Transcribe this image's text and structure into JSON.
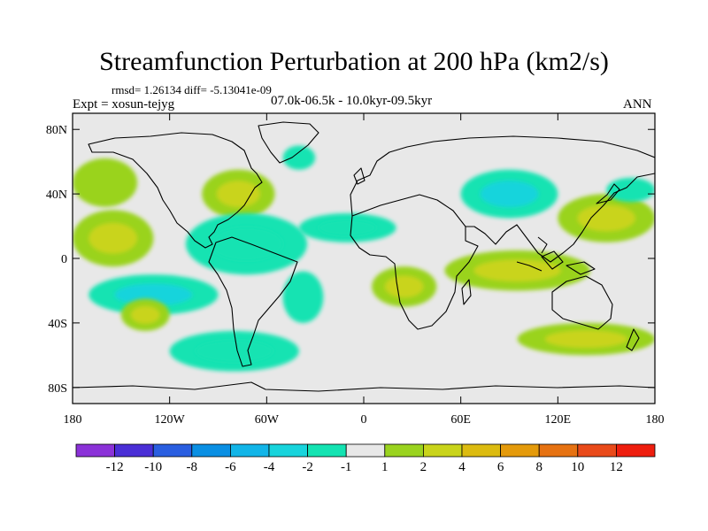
{
  "title": "Streamfunction Perturbation at 200 hPa (km2/s)",
  "stats": "rmsd= 1.26134 diff= -5.13041e-09",
  "experiment": "Expt = xosun-tejyg",
  "period": "07.0k-06.5k - 10.0kyr-09.5kyr",
  "season": "ANN",
  "map": {
    "projection": "cylindrical-equidistant",
    "lon_range": [
      -180,
      180
    ],
    "lat_range": [
      -90,
      90
    ],
    "x_ticks": [
      {
        "lon": -180,
        "label": "180"
      },
      {
        "lon": -120,
        "label": "120W"
      },
      {
        "lon": -60,
        "label": "60W"
      },
      {
        "lon": 0,
        "label": "0"
      },
      {
        "lon": 60,
        "label": "60E"
      },
      {
        "lon": 120,
        "label": "120E"
      },
      {
        "lon": 180,
        "label": "180"
      }
    ],
    "y_ticks": [
      {
        "lat": 80,
        "label": "80N"
      },
      {
        "lat": 40,
        "label": "40N"
      },
      {
        "lat": 0,
        "label": "0"
      },
      {
        "lat": -40,
        "label": "40S"
      },
      {
        "lat": -80,
        "label": "80S"
      }
    ],
    "background_color": "#e8e8e8",
    "features": [
      {
        "name": "north-pacific-positive",
        "lon": [
          -180,
          -140
        ],
        "lat": [
          32,
          62
        ],
        "value": 1.5
      },
      {
        "name": "tropical-pacific-positive",
        "lon": [
          -180,
          -130
        ],
        "lat": [
          -5,
          30
        ],
        "value": 3.5
      },
      {
        "name": "north-atlantic-positive",
        "lon": [
          -100,
          -55
        ],
        "lat": [
          25,
          55
        ],
        "value": 2
      },
      {
        "name": "greenland-negative",
        "lon": [
          -50,
          -30
        ],
        "lat": [
          55,
          70
        ],
        "value": -1.5
      },
      {
        "name": "central-america-negative",
        "lon": [
          -110,
          -35
        ],
        "lat": [
          -10,
          28
        ],
        "value": -2
      },
      {
        "name": "tropical-atlantic-negative",
        "lon": [
          -40,
          20
        ],
        "lat": [
          10,
          28
        ],
        "value": -2
      },
      {
        "name": "south-pacific-negative",
        "lon": [
          -170,
          -90
        ],
        "lat": [
          -35,
          -10
        ],
        "value": -2.5
      },
      {
        "name": "south-america-negative",
        "lon": [
          -50,
          -25
        ],
        "lat": [
          -40,
          -8
        ],
        "value": -1
      },
      {
        "name": "south-pacific-positive",
        "lon": [
          -150,
          -120
        ],
        "lat": [
          -45,
          -25
        ],
        "value": 2.5
      },
      {
        "name": "southern-ocean-negative",
        "lon": [
          -120,
          -40
        ],
        "lat": [
          -70,
          -45
        ],
        "value": -2
      },
      {
        "name": "southern-africa-positive",
        "lon": [
          5,
          45
        ],
        "lat": [
          -30,
          -5
        ],
        "value": 2.5
      },
      {
        "name": "asia-negative",
        "lon": [
          60,
          120
        ],
        "lat": [
          25,
          55
        ],
        "value": -2.5
      },
      {
        "name": "west-pacific-positive",
        "lon": [
          120,
          180
        ],
        "lat": [
          10,
          40
        ],
        "value": 2
      },
      {
        "name": "maritime-continent-positive",
        "lon": [
          50,
          140
        ],
        "lat": [
          -20,
          5
        ],
        "value": 3.5
      },
      {
        "name": "north-pacific-east-negative",
        "lon": [
          150,
          180
        ],
        "lat": [
          35,
          50
        ],
        "value": -1.5
      },
      {
        "name": "south-indian-positive",
        "lon": [
          95,
          180
        ],
        "lat": [
          -60,
          -40
        ],
        "value": 2
      }
    ]
  },
  "colorbar": {
    "colors": [
      "#8b32d8",
      "#4a2fd6",
      "#2a5ee0",
      "#0a8fe3",
      "#12b5e8",
      "#18d4dc",
      "#14e3b2",
      "#e8e8e8",
      "#9ad31f",
      "#c9d41b",
      "#dcbb10",
      "#e49a0b",
      "#e67212",
      "#e94a1a",
      "#ee1e0e"
    ],
    "labels": [
      "-12",
      "-10",
      "-8",
      "-6",
      "-4",
      "-2",
      "-1",
      "1",
      "2",
      "4",
      "6",
      "8",
      "10",
      "12"
    ]
  }
}
